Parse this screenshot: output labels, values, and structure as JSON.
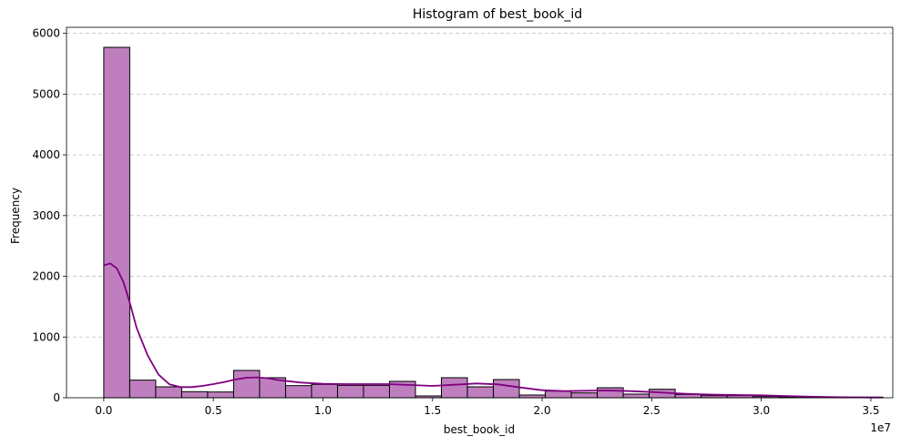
{
  "chart_data": {
    "type": "bar",
    "title": "Histogram of best_book_id",
    "xlabel": "best_book_id",
    "ylabel": "Frequency",
    "x_offset_label": "1e7",
    "x_range": [
      -0.17,
      3.6
    ],
    "ylim": [
      0,
      6100
    ],
    "x_ticks": [
      0.0,
      0.5,
      1.0,
      1.5,
      2.0,
      2.5,
      3.0,
      3.5
    ],
    "x_tick_labels": [
      "0.0",
      "0.5",
      "1.0",
      "1.5",
      "2.0",
      "2.5",
      "3.0",
      "3.5"
    ],
    "y_ticks": [
      0,
      1000,
      2000,
      3000,
      4000,
      5000,
      6000
    ],
    "y_tick_labels": [
      "0",
      "1000",
      "2000",
      "3000",
      "4000",
      "5000",
      "6000"
    ],
    "grid": "y-dashed",
    "bar_color": "#bf7fbf",
    "edge_color": "#000000",
    "kde_color": "#800080",
    "bins": {
      "start": 0.0,
      "width": 0.1185,
      "counts": [
        5770,
        290,
        180,
        100,
        95,
        450,
        330,
        200,
        220,
        205,
        205,
        270,
        30,
        330,
        180,
        300,
        45,
        110,
        80,
        165,
        60,
        140,
        55,
        35,
        35,
        20,
        15,
        10,
        10,
        10
      ]
    },
    "kde": {
      "x": [
        0.0,
        0.03,
        0.06,
        0.09,
        0.12,
        0.15,
        0.2,
        0.25,
        0.3,
        0.35,
        0.4,
        0.45,
        0.5,
        0.55,
        0.6,
        0.65,
        0.7,
        0.75,
        0.8,
        0.9,
        1.0,
        1.1,
        1.2,
        1.3,
        1.4,
        1.5,
        1.6,
        1.7,
        1.8,
        1.9,
        2.0,
        2.1,
        2.2,
        2.3,
        2.4,
        2.5,
        2.6,
        2.7,
        2.8,
        2.9,
        3.0,
        3.1,
        3.2,
        3.3,
        3.4,
        3.5,
        3.55
      ],
      "y": [
        2180,
        2210,
        2130,
        1900,
        1550,
        1150,
        700,
        380,
        220,
        175,
        175,
        195,
        225,
        260,
        300,
        330,
        335,
        320,
        290,
        250,
        230,
        225,
        225,
        225,
        210,
        195,
        215,
        235,
        220,
        170,
        125,
        110,
        115,
        120,
        110,
        95,
        75,
        60,
        50,
        45,
        40,
        30,
        20,
        12,
        8,
        5,
        4
      ]
    }
  }
}
